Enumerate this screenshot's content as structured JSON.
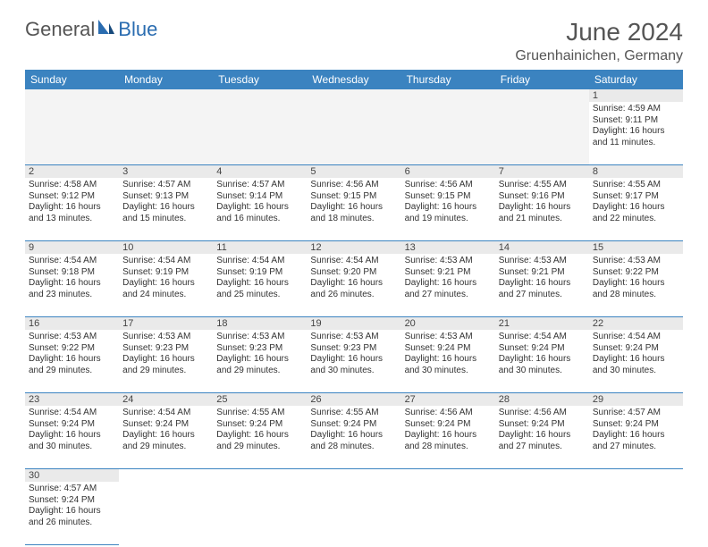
{
  "brand": {
    "part1": "General",
    "part2": "Blue"
  },
  "title": "June 2024",
  "location": "Gruenhainichen, Germany",
  "colors": {
    "header_bg": "#3b83c0",
    "header_fg": "#ffffff",
    "daynum_bg": "#eaeaea",
    "rule": "#3b83c0",
    "text": "#333333"
  },
  "dow": [
    "Sunday",
    "Monday",
    "Tuesday",
    "Wednesday",
    "Thursday",
    "Friday",
    "Saturday"
  ],
  "first_weekday_index": 6,
  "days": {
    "1": {
      "sunrise": "4:59 AM",
      "sunset": "9:11 PM",
      "daylight": "16 hours and 11 minutes."
    },
    "2": {
      "sunrise": "4:58 AM",
      "sunset": "9:12 PM",
      "daylight": "16 hours and 13 minutes."
    },
    "3": {
      "sunrise": "4:57 AM",
      "sunset": "9:13 PM",
      "daylight": "16 hours and 15 minutes."
    },
    "4": {
      "sunrise": "4:57 AM",
      "sunset": "9:14 PM",
      "daylight": "16 hours and 16 minutes."
    },
    "5": {
      "sunrise": "4:56 AM",
      "sunset": "9:15 PM",
      "daylight": "16 hours and 18 minutes."
    },
    "6": {
      "sunrise": "4:56 AM",
      "sunset": "9:15 PM",
      "daylight": "16 hours and 19 minutes."
    },
    "7": {
      "sunrise": "4:55 AM",
      "sunset": "9:16 PM",
      "daylight": "16 hours and 21 minutes."
    },
    "8": {
      "sunrise": "4:55 AM",
      "sunset": "9:17 PM",
      "daylight": "16 hours and 22 minutes."
    },
    "9": {
      "sunrise": "4:54 AM",
      "sunset": "9:18 PM",
      "daylight": "16 hours and 23 minutes."
    },
    "10": {
      "sunrise": "4:54 AM",
      "sunset": "9:19 PM",
      "daylight": "16 hours and 24 minutes."
    },
    "11": {
      "sunrise": "4:54 AM",
      "sunset": "9:19 PM",
      "daylight": "16 hours and 25 minutes."
    },
    "12": {
      "sunrise": "4:54 AM",
      "sunset": "9:20 PM",
      "daylight": "16 hours and 26 minutes."
    },
    "13": {
      "sunrise": "4:53 AM",
      "sunset": "9:21 PM",
      "daylight": "16 hours and 27 minutes."
    },
    "14": {
      "sunrise": "4:53 AM",
      "sunset": "9:21 PM",
      "daylight": "16 hours and 27 minutes."
    },
    "15": {
      "sunrise": "4:53 AM",
      "sunset": "9:22 PM",
      "daylight": "16 hours and 28 minutes."
    },
    "16": {
      "sunrise": "4:53 AM",
      "sunset": "9:22 PM",
      "daylight": "16 hours and 29 minutes."
    },
    "17": {
      "sunrise": "4:53 AM",
      "sunset": "9:23 PM",
      "daylight": "16 hours and 29 minutes."
    },
    "18": {
      "sunrise": "4:53 AM",
      "sunset": "9:23 PM",
      "daylight": "16 hours and 29 minutes."
    },
    "19": {
      "sunrise": "4:53 AM",
      "sunset": "9:23 PM",
      "daylight": "16 hours and 30 minutes."
    },
    "20": {
      "sunrise": "4:53 AM",
      "sunset": "9:24 PM",
      "daylight": "16 hours and 30 minutes."
    },
    "21": {
      "sunrise": "4:54 AM",
      "sunset": "9:24 PM",
      "daylight": "16 hours and 30 minutes."
    },
    "22": {
      "sunrise": "4:54 AM",
      "sunset": "9:24 PM",
      "daylight": "16 hours and 30 minutes."
    },
    "23": {
      "sunrise": "4:54 AM",
      "sunset": "9:24 PM",
      "daylight": "16 hours and 30 minutes."
    },
    "24": {
      "sunrise": "4:54 AM",
      "sunset": "9:24 PM",
      "daylight": "16 hours and 29 minutes."
    },
    "25": {
      "sunrise": "4:55 AM",
      "sunset": "9:24 PM",
      "daylight": "16 hours and 29 minutes."
    },
    "26": {
      "sunrise": "4:55 AM",
      "sunset": "9:24 PM",
      "daylight": "16 hours and 28 minutes."
    },
    "27": {
      "sunrise": "4:56 AM",
      "sunset": "9:24 PM",
      "daylight": "16 hours and 28 minutes."
    },
    "28": {
      "sunrise": "4:56 AM",
      "sunset": "9:24 PM",
      "daylight": "16 hours and 27 minutes."
    },
    "29": {
      "sunrise": "4:57 AM",
      "sunset": "9:24 PM",
      "daylight": "16 hours and 27 minutes."
    },
    "30": {
      "sunrise": "4:57 AM",
      "sunset": "9:24 PM",
      "daylight": "16 hours and 26 minutes."
    }
  },
  "labels": {
    "sunrise": "Sunrise: ",
    "sunset": "Sunset: ",
    "daylight": "Daylight: "
  }
}
